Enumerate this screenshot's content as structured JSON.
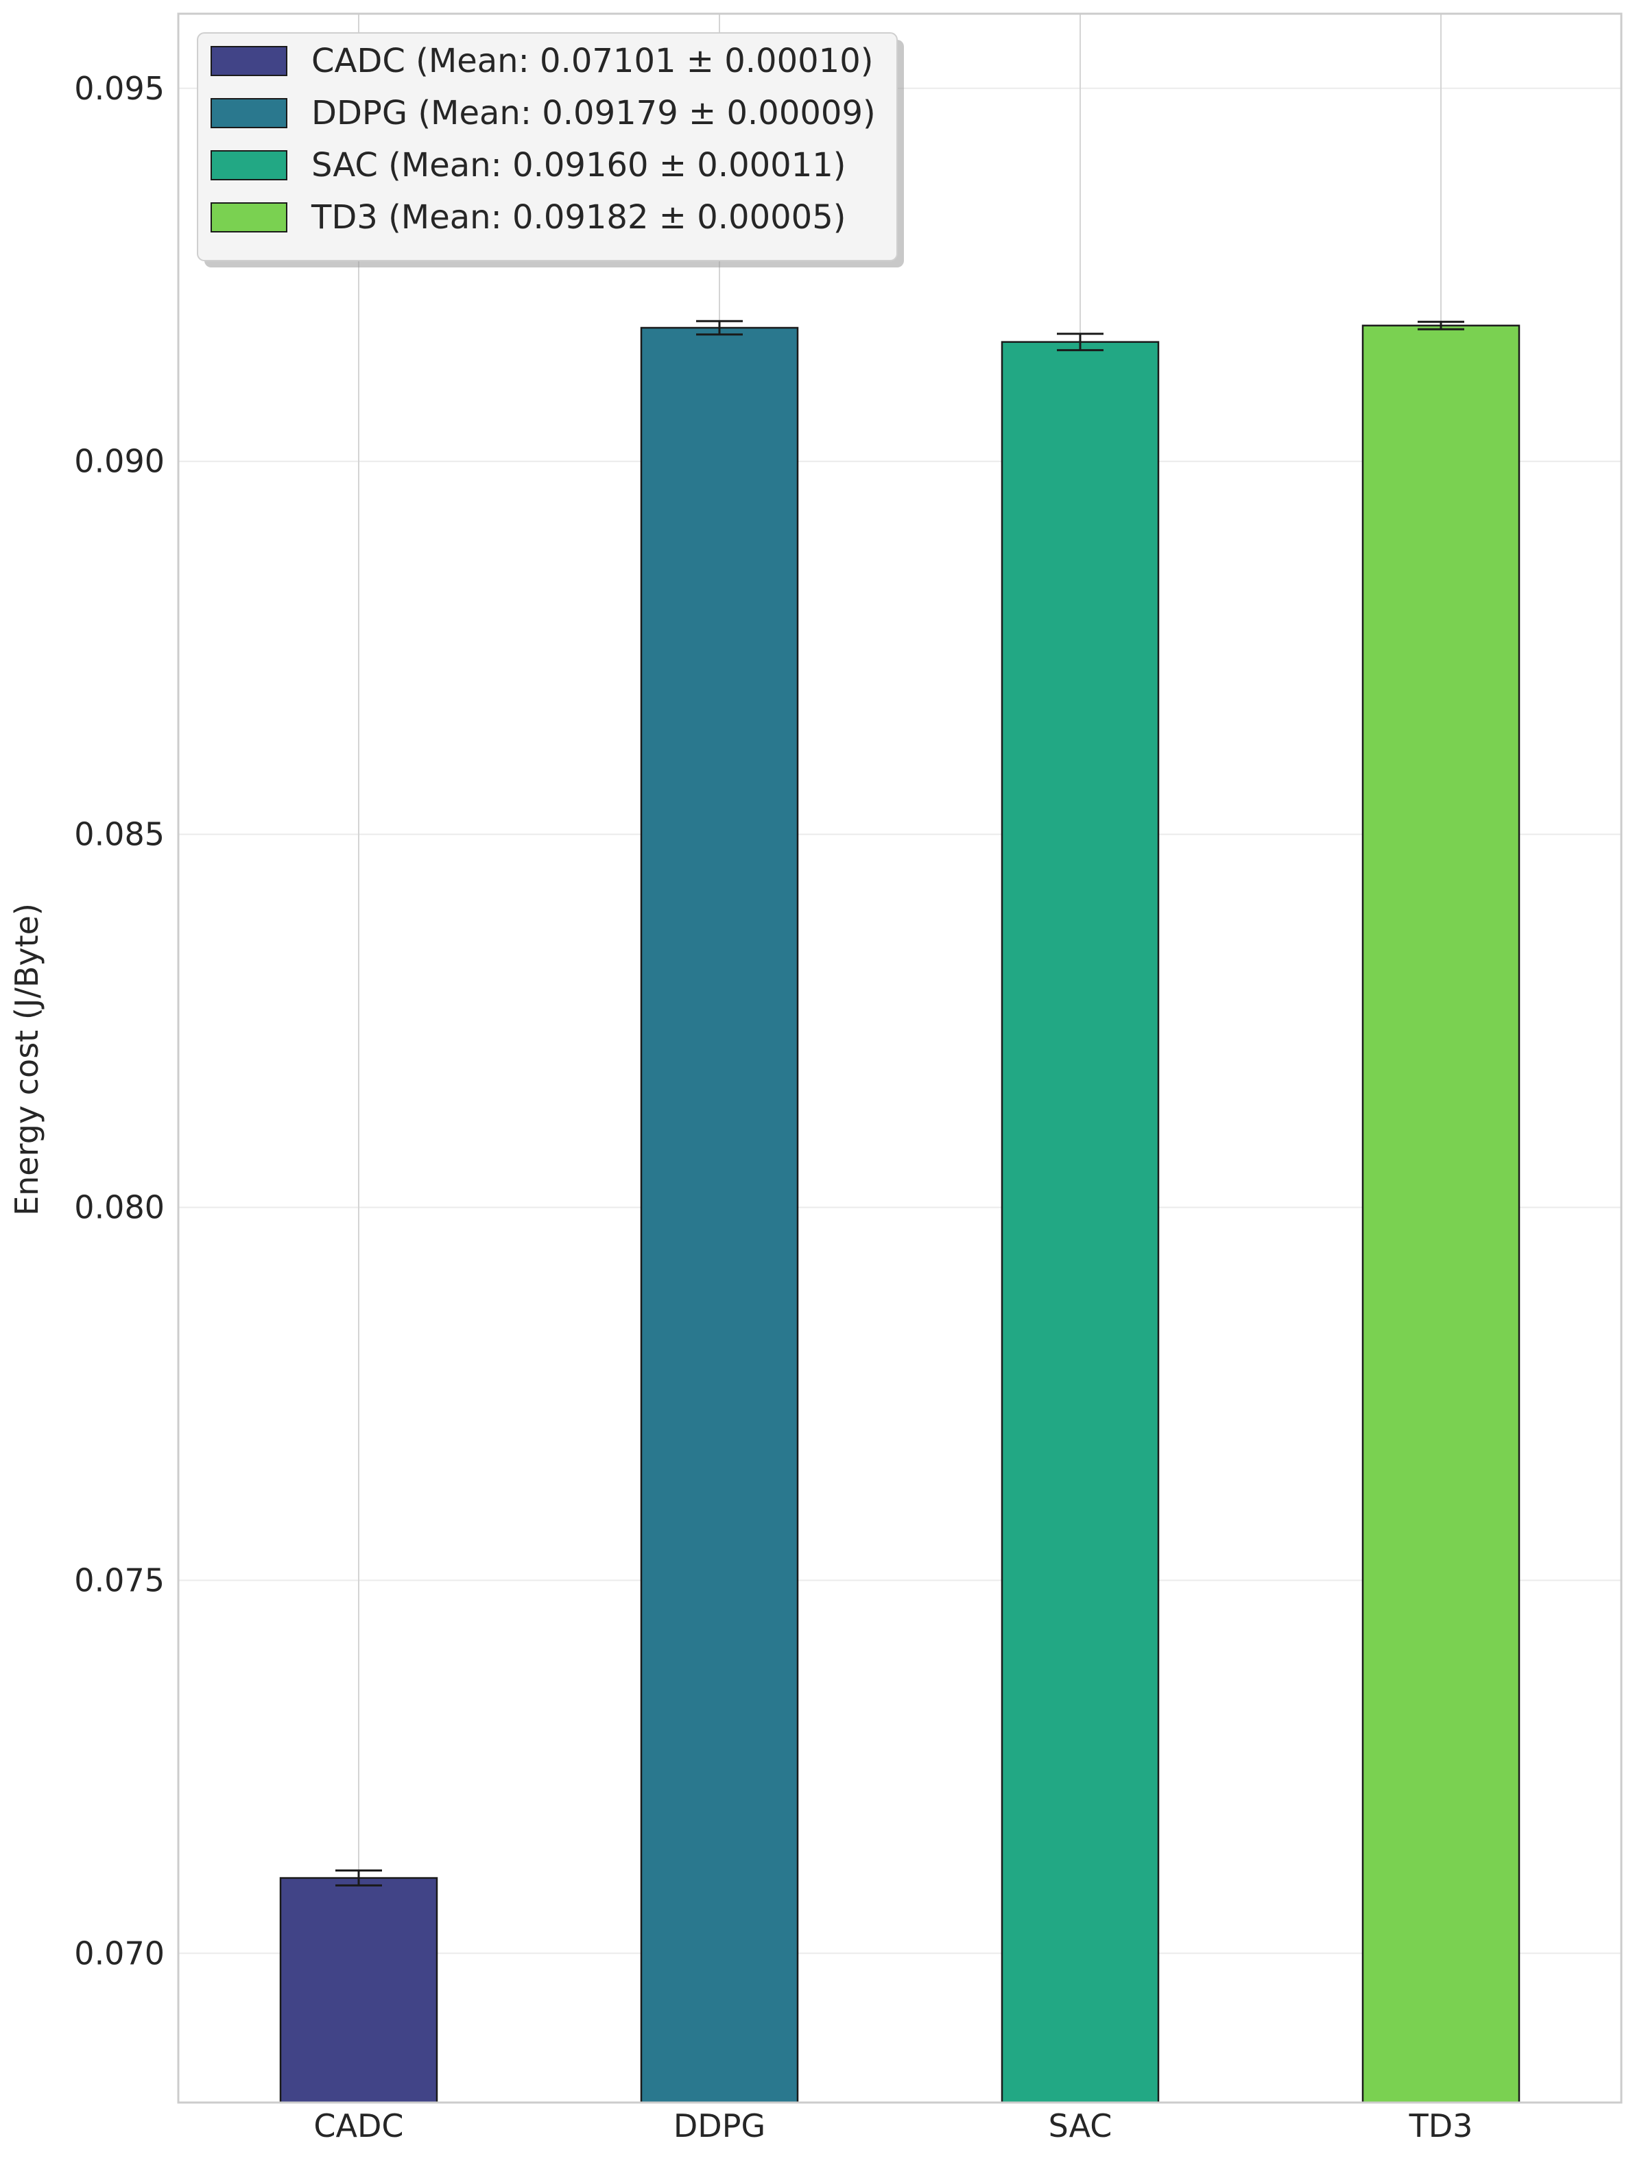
{
  "chart_data": {
    "type": "bar",
    "title": "",
    "xlabel": "",
    "ylabel": "Energy cost (J/Byte)",
    "categories": [
      "CADC",
      "DDPG",
      "SAC",
      "TD3"
    ],
    "values": [
      0.07101,
      0.09179,
      0.0916,
      0.09182
    ],
    "errors": [
      0.0001,
      9e-05,
      0.00011,
      5e-05
    ],
    "colors": [
      "#414487",
      "#2a788e",
      "#22a884",
      "#7ad151"
    ],
    "ylim": [
      0.068,
      0.096
    ],
    "yticks": [
      "0.070",
      "0.075",
      "0.080",
      "0.085",
      "0.090",
      "0.095"
    ],
    "grid": true,
    "legend_position": "top-left",
    "legend": [
      "CADC (Mean: 0.07101 ± 0.00010)",
      "DDPG (Mean: 0.09179 ± 0.00009)",
      "SAC (Mean: 0.09160 ± 0.00011)",
      "TD3 (Mean: 0.09182 ± 0.00005)"
    ]
  }
}
